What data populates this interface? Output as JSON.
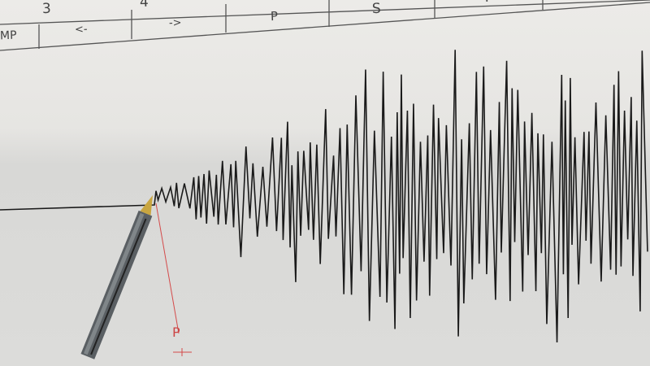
{
  "chart_sheet": {
    "header_row_1": [
      "3",
      "4",
      "S",
      "T"
    ],
    "header_row_2": [
      "MP",
      "<-",
      "->",
      "P"
    ],
    "marker_label": "P"
  },
  "colors": {
    "trace": "#1a1a1a",
    "marker": "#d44a4a",
    "paper": "#e6e5e2"
  }
}
